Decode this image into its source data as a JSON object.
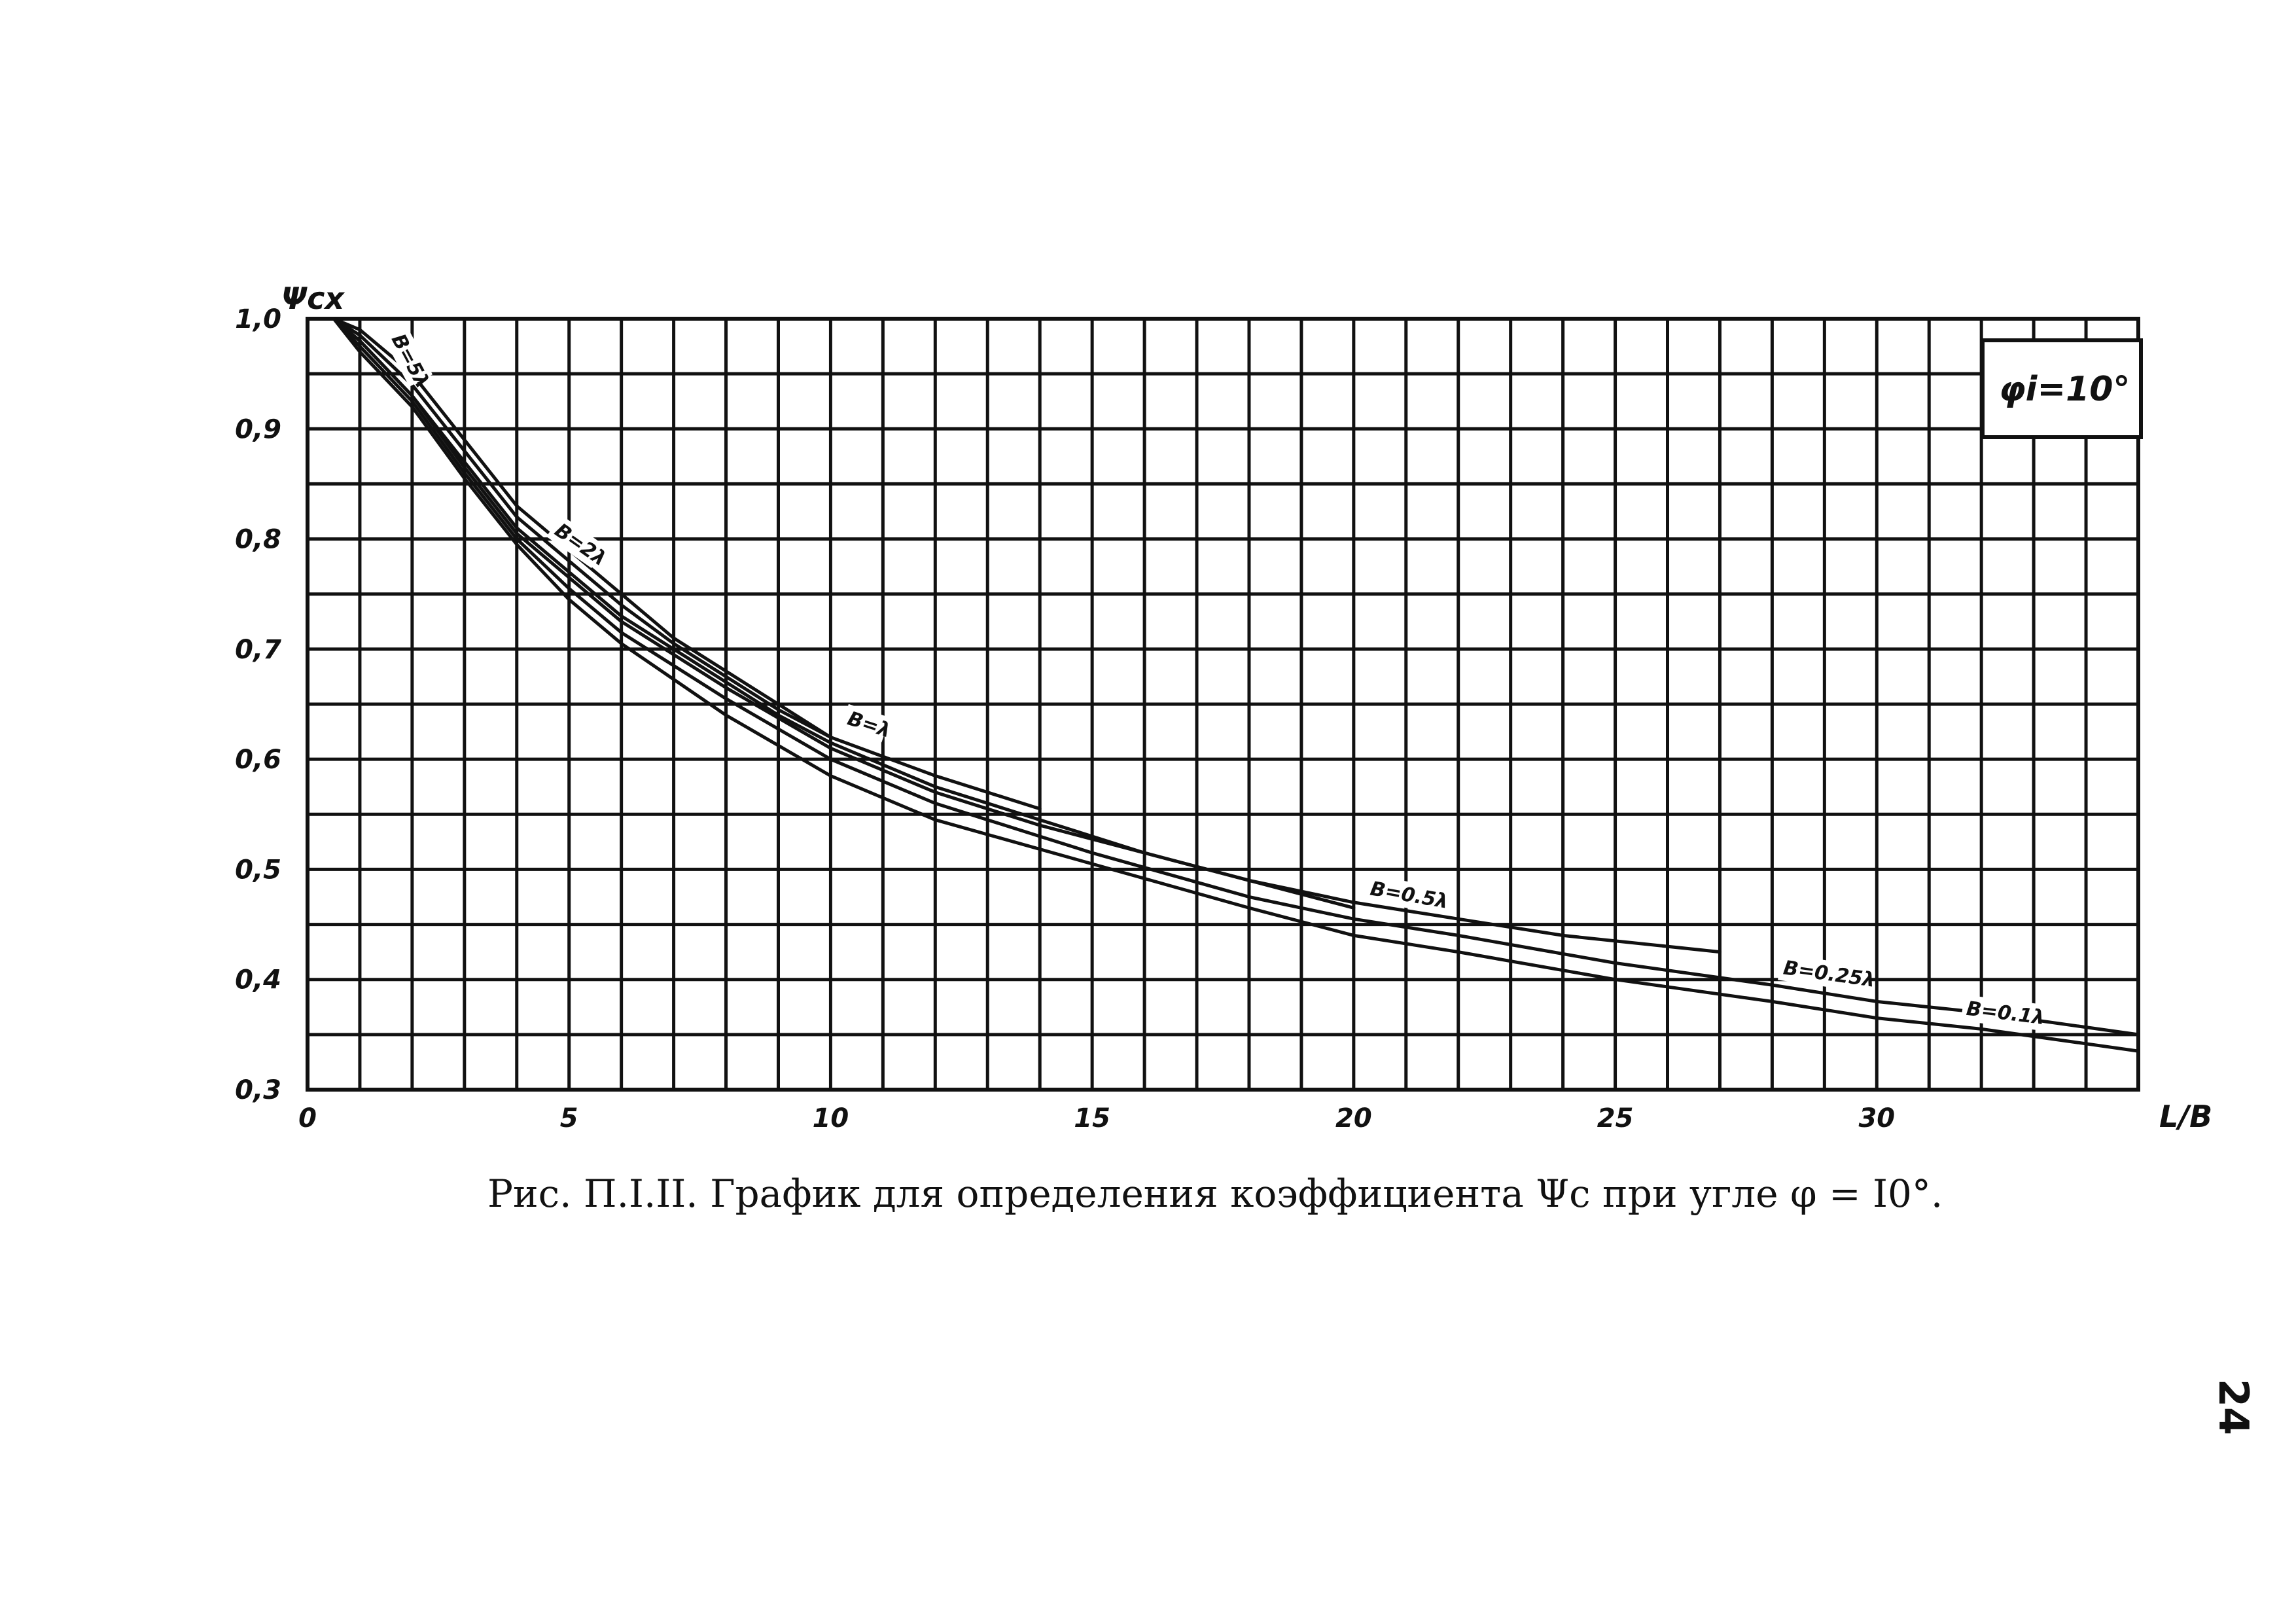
{
  "figure": {
    "caption": "Рис. П.I.II. График для определения коэффициента Ψс при угле  φ = I0°.",
    "page_number": "24"
  },
  "chart_data": {
    "type": "line",
    "ylabel": "Ψcx",
    "xlabel": "L/B",
    "inset_label": "φi=10°",
    "xlim": [
      0,
      35
    ],
    "ylim": [
      0.3,
      1.0
    ],
    "x_ticks": [
      "0",
      "5",
      "10",
      "15",
      "20",
      "25",
      "30"
    ],
    "x_tick_values": [
      0,
      5,
      10,
      15,
      20,
      25,
      30
    ],
    "y_ticks": [
      "0,3",
      "0,4",
      "0,5",
      "0,6",
      "0,7",
      "0,8",
      "0,9",
      "1,0"
    ],
    "y_tick_values": [
      0.3,
      0.4,
      0.5,
      0.6,
      0.7,
      0.8,
      0.9,
      1.0
    ],
    "grid": true,
    "grid_x_step": 1,
    "grid_y_step": 0.05,
    "series": [
      {
        "name": "B=5λ",
        "x": [
          0.5,
          1,
          2,
          3,
          4,
          5,
          6,
          7,
          8,
          9,
          10
        ],
        "y": [
          1.0,
          0.99,
          0.95,
          0.89,
          0.83,
          0.79,
          0.75,
          0.71,
          0.68,
          0.65,
          0.62
        ]
      },
      {
        "name": "B=2λ",
        "x": [
          0.5,
          1,
          2,
          3,
          4,
          5,
          6,
          7,
          8,
          9,
          10,
          12,
          14
        ],
        "y": [
          1.0,
          0.985,
          0.94,
          0.88,
          0.82,
          0.78,
          0.74,
          0.705,
          0.675,
          0.645,
          0.62,
          0.585,
          0.555
        ]
      },
      {
        "name": "B=λ",
        "x": [
          0.5,
          1,
          2,
          3,
          4,
          5,
          6,
          7,
          8,
          9,
          10,
          12,
          14,
          16,
          18,
          20
        ],
        "y": [
          1.0,
          0.98,
          0.93,
          0.87,
          0.81,
          0.77,
          0.73,
          0.7,
          0.67,
          0.64,
          0.615,
          0.575,
          0.545,
          0.515,
          0.49,
          0.465
        ]
      },
      {
        "name": "B=0.5λ",
        "x": [
          0.5,
          1,
          2,
          3,
          4,
          5,
          6,
          8,
          10,
          12,
          14,
          16,
          18,
          20,
          22,
          24,
          27
        ],
        "y": [
          1.0,
          0.98,
          0.93,
          0.865,
          0.805,
          0.765,
          0.725,
          0.665,
          0.61,
          0.57,
          0.54,
          0.515,
          0.49,
          0.47,
          0.455,
          0.44,
          0.425
        ]
      },
      {
        "name": "B=0.25λ",
        "x": [
          0.5,
          1,
          2,
          3,
          4,
          5,
          6,
          8,
          10,
          12,
          15,
          18,
          20,
          22,
          25,
          28,
          30,
          32,
          35
        ],
        "y": [
          1.0,
          0.975,
          0.925,
          0.86,
          0.8,
          0.755,
          0.715,
          0.655,
          0.6,
          0.56,
          0.515,
          0.475,
          0.455,
          0.44,
          0.415,
          0.395,
          0.38,
          0.37,
          0.35
        ]
      },
      {
        "name": "B=0.1λ",
        "x": [
          0.5,
          1,
          2,
          3,
          4,
          5,
          6,
          8,
          10,
          12,
          15,
          18,
          20,
          22,
          25,
          28,
          30,
          32,
          35
        ],
        "y": [
          1.0,
          0.97,
          0.92,
          0.855,
          0.795,
          0.745,
          0.705,
          0.64,
          0.585,
          0.545,
          0.505,
          0.465,
          0.44,
          0.425,
          0.4,
          0.38,
          0.365,
          0.355,
          0.335
        ]
      }
    ],
    "series_labels": [
      "B=5λ",
      "B=2λ",
      "B=λ",
      "B=0.5λ",
      "B=0.25λ",
      "B=0.1λ"
    ]
  }
}
